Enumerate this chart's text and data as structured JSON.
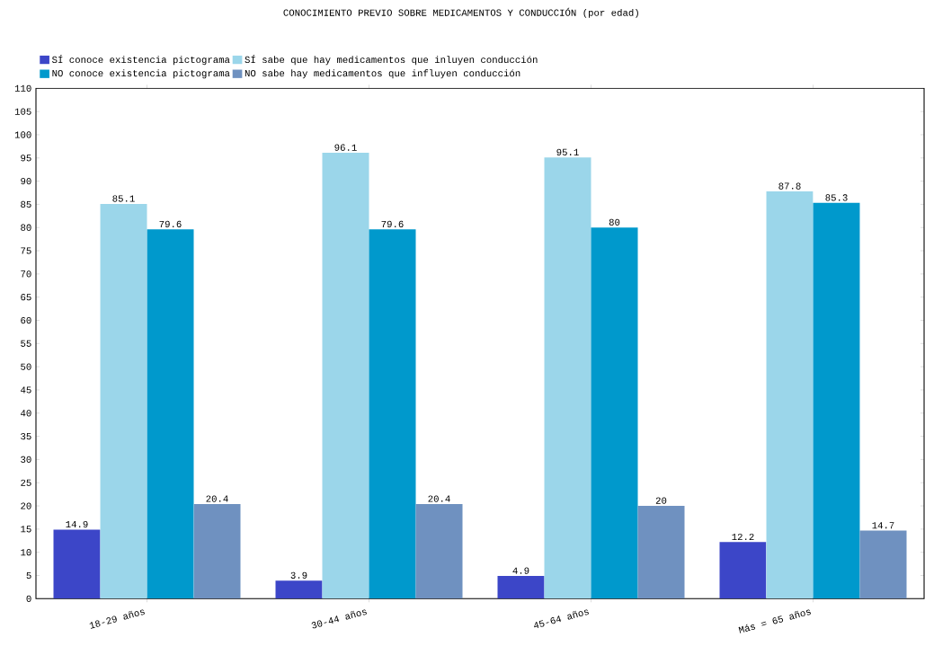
{
  "chart_data": {
    "type": "bar",
    "title": "CONOCIMIENTO PREVIO SOBRE MEDICAMENTOS Y CONDUCCIÓN  (por edad)",
    "categories": [
      "18-29 años",
      "30-44 años",
      "45-64 años",
      "Más = 65 años"
    ],
    "series": [
      {
        "name": "SÍ conoce existencia pictograma",
        "color": "#3c46c8",
        "values": [
          14.9,
          3.9,
          4.9,
          12.2
        ]
      },
      {
        "name": "SÍ sabe que hay medicamentos que inluyen conducción",
        "color": "#9bd6ea",
        "values": [
          85.1,
          96.1,
          95.1,
          87.8
        ]
      },
      {
        "name": "NO conoce existencia pictograma",
        "color": "#0099cc",
        "values": [
          79.6,
          79.6,
          80,
          85.3
        ]
      },
      {
        "name": "NO sabe hay medicamentos que influyen conducción",
        "color": "#6f91c0",
        "values": [
          20.4,
          20.4,
          20,
          14.7
        ]
      }
    ],
    "ylim": [
      0,
      110
    ],
    "yticks": [
      0,
      5,
      10,
      15,
      20,
      25,
      30,
      35,
      40,
      45,
      50,
      55,
      60,
      65,
      70,
      75,
      80,
      85,
      90,
      95,
      100,
      105,
      110
    ],
    "data_labels": true,
    "legend": "top left",
    "grid": false
  }
}
